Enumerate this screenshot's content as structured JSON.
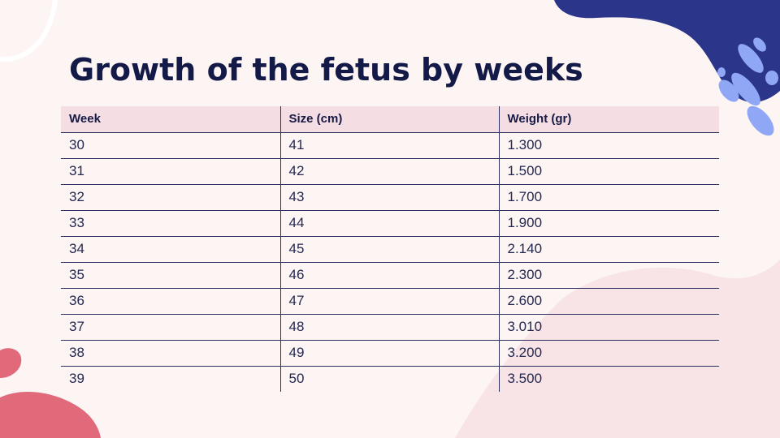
{
  "slide": {
    "title": "Growth of the fetus by weeks"
  },
  "table": {
    "headers": [
      "Week",
      "Size (cm)",
      "Weight (gr)"
    ],
    "rows": [
      [
        "30",
        "41",
        "1.300"
      ],
      [
        "31",
        "42",
        "1.500"
      ],
      [
        "32",
        "43",
        "1.700"
      ],
      [
        "33",
        "44",
        "1.900"
      ],
      [
        "34",
        "45",
        "2.140"
      ],
      [
        "35",
        "46",
        "2.300"
      ],
      [
        "36",
        "47",
        "2.600"
      ],
      [
        "37",
        "48",
        "3.010"
      ],
      [
        "38",
        "49",
        "3.200"
      ],
      [
        "39",
        "50",
        "3.500"
      ]
    ]
  },
  "colors": {
    "background": "#fdf4f4",
    "title": "#141a47",
    "header_fill": "#f4dde3",
    "rule_lines": "#2c2e5c",
    "navy_blob": "#2b3589",
    "blue_accent": "#8fa7f4",
    "coral_blob": "#e06a7a",
    "pale_pink_blob": "#f8e4e6"
  }
}
